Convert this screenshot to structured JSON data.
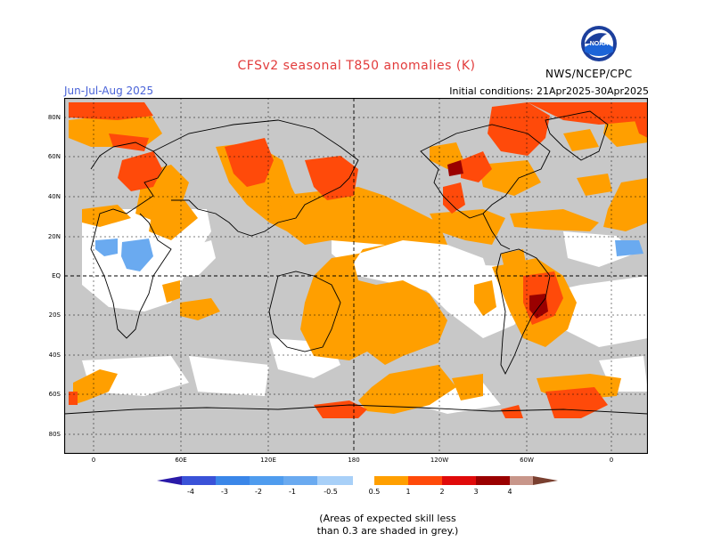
{
  "header": {
    "title": "CFSv2 seasonal T850 anomalies (K)",
    "season": "Jun-Jul-Aug 2025",
    "initial_conditions": "Initial conditions: 21Apr2025-30Apr2025",
    "agency": "NWS/NCEP/CPC",
    "logo_text": "NOAA"
  },
  "axes": {
    "lat_labels": [
      "80N",
      "60N",
      "40N",
      "20N",
      "EQ",
      "20S",
      "40S",
      "60S",
      "80S"
    ],
    "lon_labels": [
      "0",
      "60E",
      "120E",
      "180",
      "120W",
      "60W",
      "0"
    ]
  },
  "colorbar": {
    "ticks": [
      "-4",
      "-3",
      "-2",
      "-1",
      "-0.5",
      "0.5",
      "1",
      "2",
      "3",
      "4"
    ],
    "colors": [
      "#2a1aa8",
      "#3a52d8",
      "#3a86e8",
      "#6aaaf0",
      "#a8d0f8",
      "#ffffff",
      "#ff9f00",
      "#ff4a0a",
      "#e00a0a",
      "#9a0000",
      "#c8968a",
      "#7a4030"
    ]
  },
  "note": {
    "line1": "(Areas of expected skill less",
    "line2": "than 0.3 are shaded in grey.)"
  },
  "legend_colors": {
    "grey_low_skill": "#c8c8c8",
    "orange": "#ff9f00",
    "red_orange": "#ff4a0a",
    "red": "#e00a0a",
    "dark_red": "#9a0000",
    "light_blue": "#6aaaf0"
  }
}
